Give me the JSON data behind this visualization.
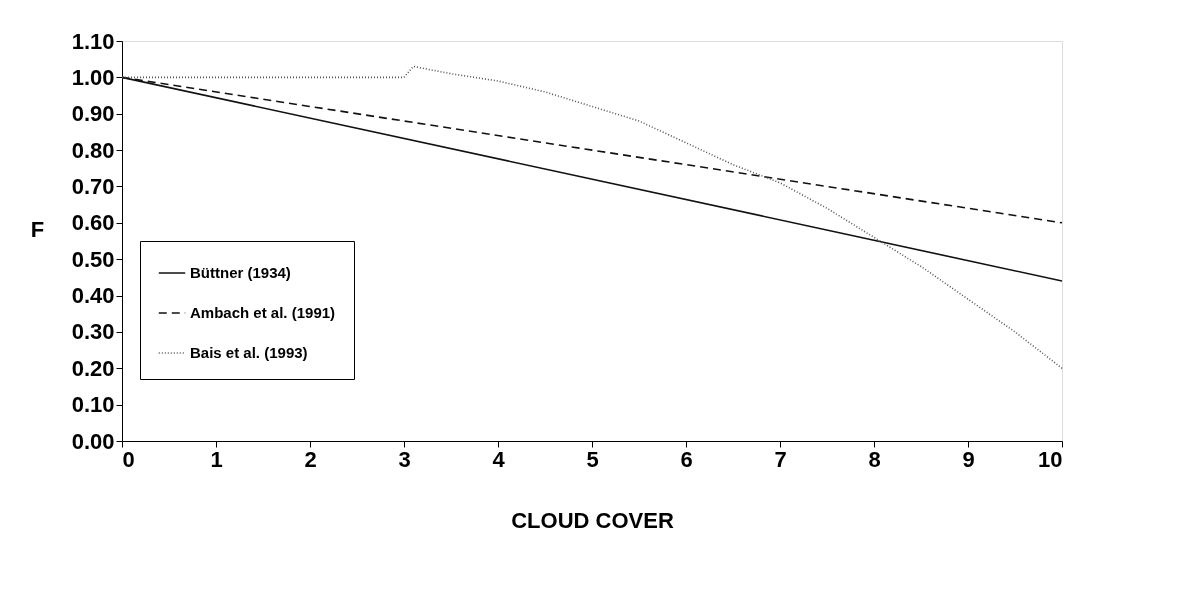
{
  "chart_data": {
    "type": "line",
    "xlabel": "CLOUD COVER",
    "ylabel": "F",
    "xlim": [
      0,
      10
    ],
    "xticks": [
      0,
      1,
      2,
      3,
      4,
      5,
      6,
      7,
      8,
      9,
      10
    ],
    "ylim": [
      0,
      1.1
    ],
    "yticks": [
      {
        "value": 0,
        "label": "0.00"
      },
      {
        "value": 0.1,
        "label": "0.10"
      },
      {
        "value": 0.2,
        "label": "0.20"
      },
      {
        "value": 0.3,
        "label": "0.30"
      },
      {
        "value": 0.4,
        "label": "0.40"
      },
      {
        "value": 0.5,
        "label": "0.50"
      },
      {
        "value": 0.6,
        "label": "0.60"
      },
      {
        "value": 0.7,
        "label": "0.70"
      },
      {
        "value": 0.8,
        "label": "0.80"
      },
      {
        "value": 0.9,
        "label": "0.90"
      },
      {
        "value": 1.0,
        "label": "1.00"
      },
      {
        "value": 1.1,
        "label": "1.10"
      }
    ],
    "grid": false,
    "legend": "left",
    "marker": "none",
    "series": [
      {
        "name": "Büttner (1934)",
        "color": "#111111",
        "line_style": "solid",
        "x": [
          0,
          10
        ],
        "values": [
          1.0,
          0.44
        ]
      },
      {
        "name": "Ambach et al. (1991)",
        "color": "#111111",
        "line_style": "dashed",
        "x": [
          0,
          10
        ],
        "values": [
          1.0,
          0.6
        ]
      },
      {
        "name": "Bais et al. (1993)",
        "color": "#555555",
        "line_style": "dotted",
        "x": [
          0,
          3,
          3.1,
          3.5,
          4,
          4.5,
          5,
          5.5,
          6,
          6.5,
          7,
          7.5,
          8,
          8.5,
          9,
          9.5,
          10
        ],
        "values": [
          1.0,
          1.0,
          1.03,
          1.01,
          0.99,
          0.96,
          0.92,
          0.88,
          0.82,
          0.76,
          0.71,
          0.64,
          0.56,
          0.48,
          0.39,
          0.3,
          0.2
        ]
      }
    ]
  }
}
